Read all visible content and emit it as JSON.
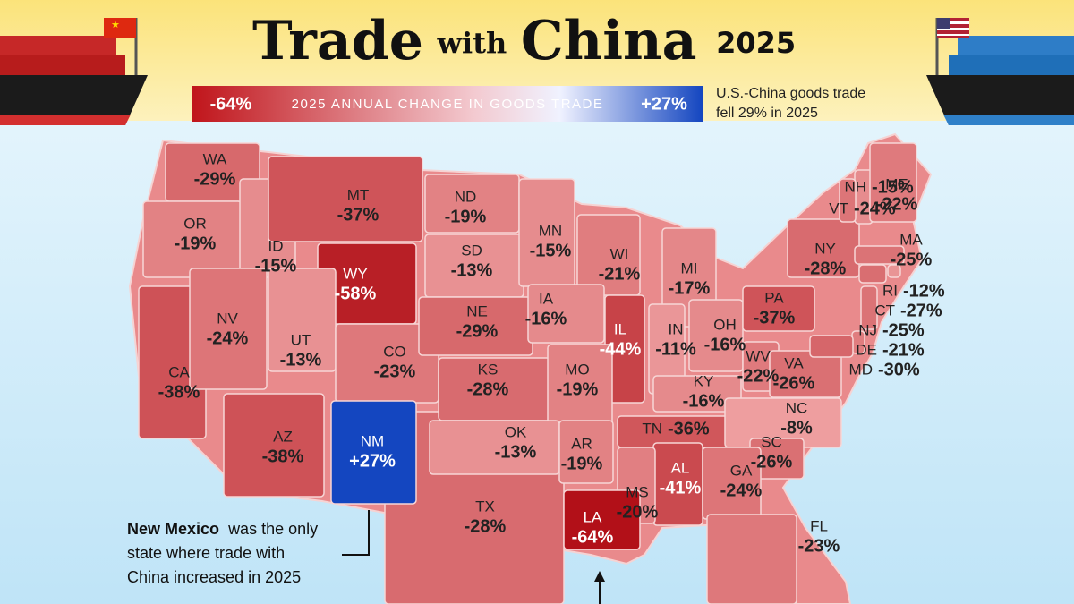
{
  "title": {
    "words": [
      "Trade",
      "with",
      "China",
      "2025"
    ]
  },
  "legend": {
    "min": {
      "value": -64,
      "label": "-64%"
    },
    "max": {
      "value": 27,
      "label": "+27%"
    },
    "title": "2025 ANNUAL CHANGE IN GOODS TRADE"
  },
  "note": [
    "U.S.-China goods trade",
    "fell 29% in 2025"
  ],
  "annotation": {
    "bold": "New Mexico",
    "lines": [
      "was the only",
      "state where trade with",
      "China increased in 2025"
    ]
  },
  "states": [
    {
      "abbr": "TX",
      "value": -28,
      "value_label": "-28%"
    },
    {
      "abbr": "CA",
      "value": -38,
      "value_label": "-38%"
    },
    {
      "abbr": "WA",
      "value": -29,
      "value_label": "-29%"
    },
    {
      "abbr": "OR",
      "value": -19,
      "value_label": "-19%"
    },
    {
      "abbr": "ID",
      "value": -15,
      "value_label": "-15%"
    },
    {
      "abbr": "MT",
      "value": -37,
      "value_label": "-37%"
    },
    {
      "abbr": "WY",
      "value": -58,
      "value_label": "-58%"
    },
    {
      "abbr": "ND",
      "value": -19,
      "value_label": "-19%"
    },
    {
      "abbr": "SD",
      "value": -13,
      "value_label": "-13%"
    },
    {
      "abbr": "MN",
      "value": -15,
      "value_label": "-15%"
    },
    {
      "abbr": "WI",
      "value": -21,
      "value_label": "-21%"
    },
    {
      "abbr": "MI",
      "value": -17,
      "value_label": "-17%"
    },
    {
      "abbr": "NV",
      "value": -24,
      "value_label": "-24%"
    },
    {
      "abbr": "UT",
      "value": -13,
      "value_label": "-13%"
    },
    {
      "abbr": "CO",
      "value": -23,
      "value_label": "-23%"
    },
    {
      "abbr": "NE",
      "value": -29,
      "value_label": "-29%"
    },
    {
      "abbr": "IA",
      "value": -16,
      "value_label": "-16%"
    },
    {
      "abbr": "IL",
      "value": -44,
      "value_label": "-44%"
    },
    {
      "abbr": "IN",
      "value": -11,
      "value_label": "-11%"
    },
    {
      "abbr": "OH",
      "value": -16,
      "value_label": "-16%"
    },
    {
      "abbr": "KS",
      "value": -28,
      "value_label": "-28%"
    },
    {
      "abbr": "MO",
      "value": -19,
      "value_label": "-19%"
    },
    {
      "abbr": "KY",
      "value": -16,
      "value_label": "-16%"
    },
    {
      "abbr": "WV",
      "value": -22,
      "value_label": "-22%"
    },
    {
      "abbr": "VA",
      "value": -26,
      "value_label": "-26%"
    },
    {
      "abbr": "AZ",
      "value": -38,
      "value_label": "-38%"
    },
    {
      "abbr": "NM",
      "value": 27,
      "value_label": "+27%"
    },
    {
      "abbr": "OK",
      "value": -13,
      "value_label": "-13%"
    },
    {
      "abbr": "AR",
      "value": -19,
      "value_label": "-19%"
    },
    {
      "abbr": "TN",
      "value": -36,
      "value_label": "-36%"
    },
    {
      "abbr": "NC",
      "value": -8,
      "value_label": "-8%"
    },
    {
      "abbr": "SC",
      "value": -26,
      "value_label": "-26%"
    },
    {
      "abbr": "AL",
      "value": -41,
      "value_label": "-41%"
    },
    {
      "abbr": "GA",
      "value": -24,
      "value_label": "-24%"
    },
    {
      "abbr": "MS",
      "value": -20,
      "value_label": "-20%"
    },
    {
      "abbr": "LA",
      "value": -64,
      "value_label": "-64%"
    },
    {
      "abbr": "FL",
      "value": -23,
      "value_label": "-23%"
    },
    {
      "abbr": "NY",
      "value": -28,
      "value_label": "-28%"
    },
    {
      "abbr": "PA",
      "value": -37,
      "value_label": "-37%"
    },
    {
      "abbr": "NH",
      "value": -15,
      "value_label": "-15%"
    },
    {
      "abbr": "VT",
      "value": -24,
      "value_label": "-24%"
    },
    {
      "abbr": "ME",
      "value": -22,
      "value_label": "-22%"
    },
    {
      "abbr": "MA",
      "value": -25,
      "value_label": "-25%"
    },
    {
      "abbr": "RI",
      "value": -12,
      "value_label": "-12%"
    },
    {
      "abbr": "CT",
      "value": -27,
      "value_label": "-27%"
    },
    {
      "abbr": "NJ",
      "value": -25,
      "value_label": "-25%"
    },
    {
      "abbr": "DE",
      "value": -21,
      "value_label": "-21%"
    },
    {
      "abbr": "MD",
      "value": -30,
      "value_label": "-30%"
    }
  ]
}
